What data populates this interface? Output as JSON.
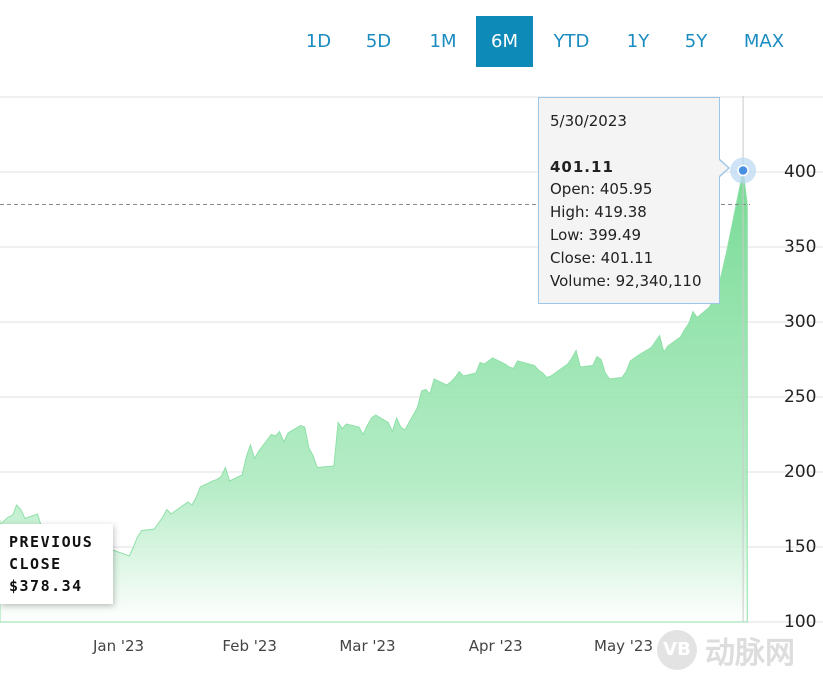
{
  "range_selector": {
    "buttons": [
      "1D",
      "5D",
      "1M",
      "6M",
      "YTD",
      "1Y",
      "5Y",
      "MAX"
    ],
    "active": "6M"
  },
  "previous_close": {
    "line1": "PREVIOUS",
    "line2": "CLOSE",
    "value": "$378.34"
  },
  "tooltip": {
    "date": "5/30/2023",
    "value": "401.11",
    "open": "Open: 405.95",
    "high": "High: 419.38",
    "low": "Low: 399.49",
    "close": "Close: 401.11",
    "volume": "Volume: 92,340,110"
  },
  "watermark": {
    "logo_text": "VB",
    "text": "动脉网"
  },
  "colors": {
    "accent": "#0e8ab8",
    "area_fill": "#7fdc9a",
    "tooltip_border": "#9cc6e8"
  },
  "chart_data": {
    "type": "area",
    "title": "",
    "xlabel": "",
    "ylabel": "",
    "ylim": [
      100,
      400
    ],
    "yticks": [
      100,
      150,
      200,
      250,
      300,
      350,
      400
    ],
    "xticks": [
      "Jan '23",
      "Feb '23",
      "Mar '23",
      "Apr '23",
      "May '23"
    ],
    "xtick_dates": [
      "2023-01-01",
      "2023-02-01",
      "2023-03-01",
      "2023-04-01",
      "2023-05-01"
    ],
    "grid": true,
    "previous_close": 378.34,
    "series": [
      {
        "x": [
          "2022-12-01",
          "2022-12-02",
          "2022-12-05",
          "2022-12-06",
          "2022-12-07",
          "2022-12-08",
          "2022-12-09",
          "2022-12-12",
          "2022-12-13",
          "2022-12-14",
          "2022-12-15",
          "2022-12-16",
          "2022-12-19",
          "2022-12-20",
          "2022-12-21",
          "2022-12-22",
          "2022-12-23",
          "2022-12-27",
          "2022-12-28",
          "2022-12-29",
          "2022-12-30",
          "2023-01-03",
          "2023-01-04",
          "2023-01-05",
          "2023-01-06",
          "2023-01-09",
          "2023-01-10",
          "2023-01-11",
          "2023-01-12",
          "2023-01-13",
          "2023-01-17",
          "2023-01-18",
          "2023-01-19",
          "2023-01-20",
          "2023-01-23",
          "2023-01-24",
          "2023-01-25",
          "2023-01-26",
          "2023-01-27",
          "2023-01-30",
          "2023-01-31",
          "2023-02-01",
          "2023-02-02",
          "2023-02-03",
          "2023-02-06",
          "2023-02-07",
          "2023-02-08",
          "2023-02-09",
          "2023-02-10",
          "2023-02-13",
          "2023-02-14",
          "2023-02-15",
          "2023-02-16",
          "2023-02-17",
          "2023-02-21",
          "2023-02-22",
          "2023-02-23",
          "2023-02-24",
          "2023-02-27",
          "2023-02-28",
          "2023-03-01",
          "2023-03-02",
          "2023-03-03",
          "2023-03-06",
          "2023-03-07",
          "2023-03-08",
          "2023-03-09",
          "2023-03-10",
          "2023-03-13",
          "2023-03-14",
          "2023-03-15",
          "2023-03-16",
          "2023-03-17",
          "2023-03-20",
          "2023-03-21",
          "2023-03-22",
          "2023-03-23",
          "2023-03-24",
          "2023-03-27",
          "2023-03-28",
          "2023-03-29",
          "2023-03-30",
          "2023-03-31",
          "2023-04-03",
          "2023-04-04",
          "2023-04-05",
          "2023-04-06",
          "2023-04-10",
          "2023-04-11",
          "2023-04-12",
          "2023-04-13",
          "2023-04-14",
          "2023-04-17",
          "2023-04-18",
          "2023-04-19",
          "2023-04-20",
          "2023-04-21",
          "2023-04-24",
          "2023-04-25",
          "2023-04-26",
          "2023-04-27",
          "2023-04-28",
          "2023-05-01",
          "2023-05-02",
          "2023-05-03",
          "2023-05-04",
          "2023-05-05",
          "2023-05-08",
          "2023-05-09",
          "2023-05-10",
          "2023-05-11",
          "2023-05-12",
          "2023-05-15",
          "2023-05-16",
          "2023-05-17",
          "2023-05-18",
          "2023-05-19",
          "2023-05-22",
          "2023-05-23",
          "2023-05-24",
          "2023-05-25",
          "2023-05-26",
          "2023-05-30",
          "2023-05-31"
        ],
        "values": [
          168,
          165,
          170,
          171,
          178,
          175,
          169,
          172,
          163,
          160,
          150,
          148,
          147,
          144,
          145,
          142,
          146,
          141,
          147,
          152,
          148,
          144,
          150,
          157,
          161,
          162,
          166,
          170,
          175,
          172,
          180,
          178,
          183,
          190,
          194,
          195,
          197,
          203,
          194,
          198,
          210,
          218,
          209,
          214,
          225,
          224,
          227,
          220,
          226,
          231,
          230,
          216,
          211,
          203,
          204,
          233,
          229,
          232,
          230,
          225,
          231,
          236,
          238,
          233,
          227,
          236,
          230,
          228,
          243,
          254,
          255,
          252,
          262,
          258,
          260,
          263,
          267,
          264,
          266,
          273,
          272,
          274,
          276,
          272,
          270,
          269,
          274,
          271,
          268,
          266,
          263,
          264,
          270,
          272,
          276,
          281,
          270,
          271,
          277,
          275,
          266,
          262,
          263,
          267,
          274,
          276,
          278,
          283,
          287,
          291,
          280,
          284,
          290,
          295,
          299,
          307,
          303,
          310,
          316,
          322,
          334,
          346,
          401,
          378
        ]
      }
    ]
  }
}
